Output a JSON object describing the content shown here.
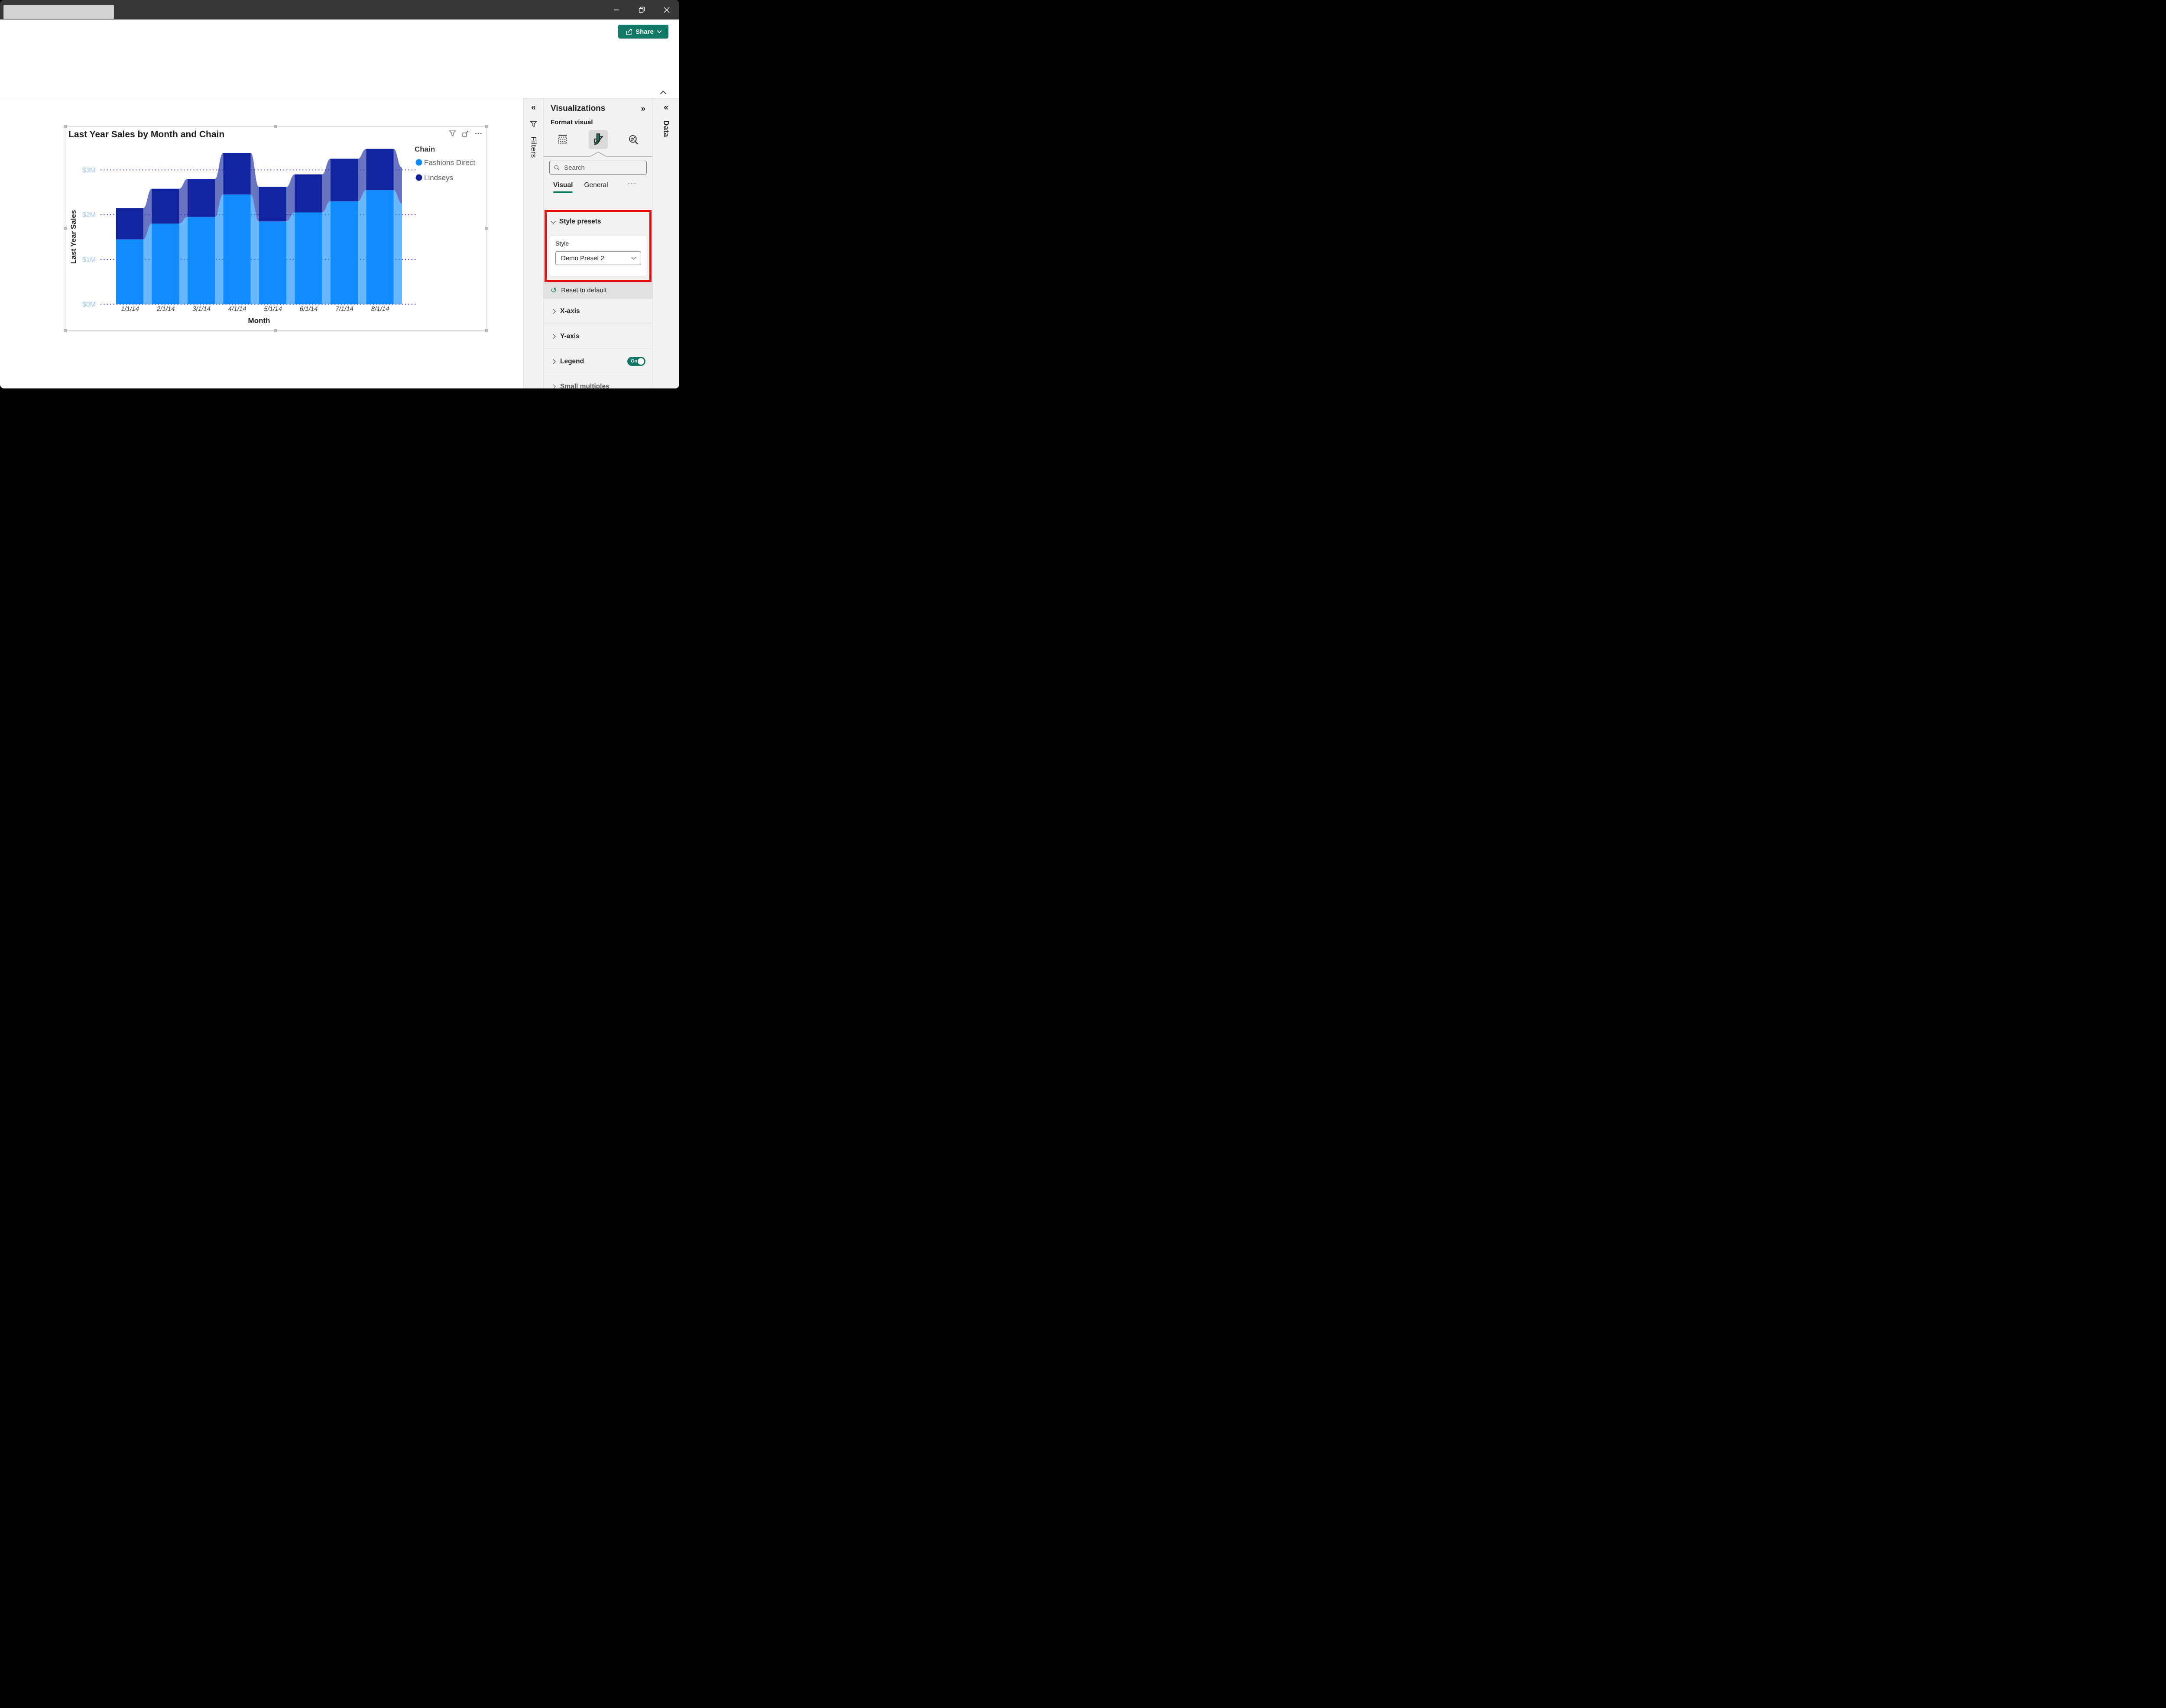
{
  "window": {
    "controls": [
      "minimize",
      "maximize",
      "close"
    ]
  },
  "ribbon": {
    "share_label": "Share"
  },
  "visual": {
    "header_icons": [
      "filter",
      "focus-mode",
      "more-options"
    ]
  },
  "chart_data": {
    "type": "area",
    "stacked": true,
    "title": "Last Year Sales by Month and Chain",
    "xlabel": "Month",
    "ylabel": "Last Year Sales",
    "legend_title": "Chain",
    "legend_position": "right",
    "grid": "dotted-horizontal",
    "units": "$ millions",
    "x": [
      "1/1/14",
      "2/1/14",
      "3/1/14",
      "4/1/14",
      "5/1/14",
      "6/1/14",
      "7/1/14",
      "8/1/14"
    ],
    "series": [
      {
        "name": "Fashions Direct",
        "color": "#118DFF",
        "values": [
          1.45,
          1.8,
          1.95,
          2.45,
          1.85,
          2.05,
          2.3,
          2.55
        ]
      },
      {
        "name": "Lindseys",
        "color": "#12239E",
        "values": [
          0.7,
          0.78,
          0.85,
          0.93,
          0.77,
          0.85,
          0.95,
          0.92
        ]
      }
    ],
    "partial_next_values": {
      "fashions_direct": 2.25,
      "total": 3.05
    },
    "y_ticks": [
      "$0M",
      "$1M",
      "$2M",
      "$3M"
    ],
    "ylim": [
      0,
      3.6
    ]
  },
  "filters_pane": {
    "label": "Filters"
  },
  "data_pane": {
    "label": "Data"
  },
  "viz_pane": {
    "title": "Visualizations",
    "subtitle": "Format visual",
    "icons": [
      "build-visual",
      "format-visual",
      "analytics"
    ],
    "search_placeholder": "Search",
    "tabs": [
      "Visual",
      "General"
    ],
    "tabs_more": "···",
    "style_presets_label": "Style presets",
    "style_label": "Style",
    "style_value": "Demo Preset 2",
    "reset_label": "Reset to default",
    "sections": [
      "X-axis",
      "Y-axis",
      "Legend",
      "Small multiples"
    ],
    "legend_toggle": "On"
  },
  "colors": {
    "accent_teal": "#117865",
    "annotation_red": "#E00E0E",
    "axis_label_blue": "#9DC6F5",
    "gridline_blue": "#2727DA",
    "titlebar": "#383636"
  }
}
